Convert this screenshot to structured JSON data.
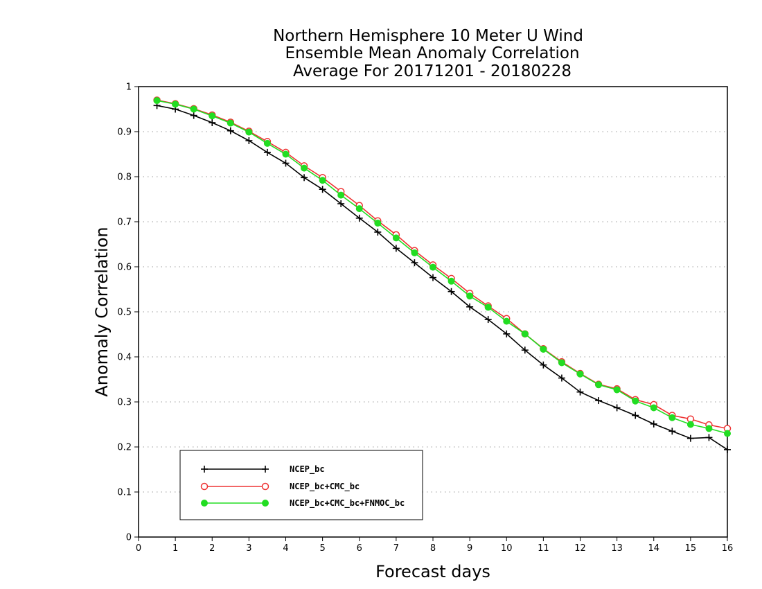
{
  "chart_data": {
    "type": "line",
    "title": [
      "Northern Hemisphere 10 Meter U Wind",
      "Ensemble Mean Anomaly Correlation",
      "Average For 20171201 - 20180228"
    ],
    "xlabel": "Forecast days",
    "ylabel": "Anomaly Correlation",
    "xlim": [
      0,
      16
    ],
    "ylim": [
      0,
      1
    ],
    "xticks": [
      "0",
      "1",
      "2",
      "3",
      "4",
      "5",
      "6",
      "7",
      "8",
      "9",
      "10",
      "11",
      "12",
      "13",
      "14",
      "15",
      "16"
    ],
    "yticks": [
      "0",
      "0.1",
      "0.2",
      "0.3",
      "0.4",
      "0.5",
      "0.6",
      "0.7",
      "0.8",
      "0.9",
      "1"
    ],
    "grid": "horizontal-dotted",
    "legend_position": "bottom-left",
    "x": [
      0.5,
      1,
      1.5,
      2,
      2.5,
      3,
      3.5,
      4,
      4.5,
      5,
      5.5,
      6,
      6.5,
      7,
      7.5,
      8,
      8.5,
      9,
      9.5,
      10,
      10.5,
      11,
      11.5,
      12,
      12.5,
      13,
      13.5,
      14,
      14.5,
      15,
      15.5,
      16
    ],
    "series": [
      {
        "name": "NCEP_bc",
        "color": "#000000",
        "marker": "plus",
        "values": [
          0.958,
          0.95,
          0.936,
          0.92,
          0.902,
          0.88,
          0.854,
          0.83,
          0.798,
          0.772,
          0.74,
          0.708,
          0.677,
          0.641,
          0.609,
          0.576,
          0.545,
          0.511,
          0.483,
          0.451,
          0.415,
          0.382,
          0.353,
          0.322,
          0.303,
          0.287,
          0.27,
          0.251,
          0.235,
          0.219,
          0.221,
          0.194
        ]
      },
      {
        "name": "NCEP_bc+CMC_bc",
        "color": "#ee3333",
        "marker": "open-circle",
        "values": [
          0.97,
          0.962,
          0.951,
          0.937,
          0.921,
          0.901,
          0.878,
          0.854,
          0.824,
          0.798,
          0.767,
          0.736,
          0.702,
          0.671,
          0.636,
          0.604,
          0.574,
          0.541,
          0.513,
          0.485,
          0.451,
          0.418,
          0.389,
          0.363,
          0.339,
          0.329,
          0.305,
          0.294,
          0.27,
          0.262,
          0.249,
          0.241
        ]
      },
      {
        "name": "NCEP_bc+CMC_bc+FNMOC_bc",
        "color": "#22dd22",
        "marker": "filled-circle",
        "values": [
          0.969,
          0.961,
          0.95,
          0.935,
          0.919,
          0.899,
          0.874,
          0.85,
          0.819,
          0.792,
          0.759,
          0.729,
          0.697,
          0.664,
          0.631,
          0.599,
          0.568,
          0.535,
          0.51,
          0.479,
          0.451,
          0.417,
          0.387,
          0.362,
          0.338,
          0.327,
          0.302,
          0.287,
          0.265,
          0.25,
          0.241,
          0.23
        ]
      }
    ]
  }
}
